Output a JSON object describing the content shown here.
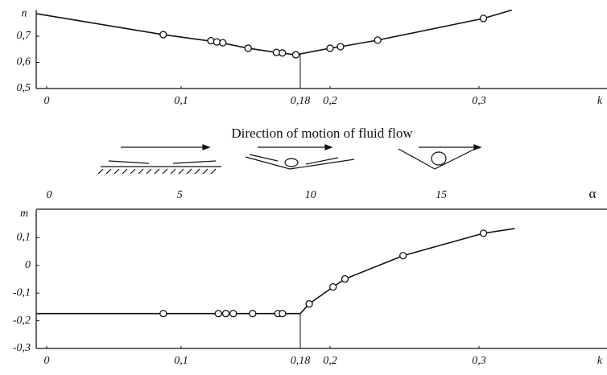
{
  "chart_data": [
    {
      "type": "line",
      "y_label": "n",
      "x_label": "k",
      "xlim": [
        0,
        0.38
      ],
      "xticks": [
        0,
        {
          "value": 0.1,
          "label": "0,1"
        },
        {
          "value": 0.18,
          "label": "0,18"
        },
        {
          "value": 0.2,
          "label": "0,2"
        },
        {
          "value": 0.3,
          "label": "0,3"
        }
      ],
      "ylim": [
        0.5,
        0.8
      ],
      "yticks": [
        {
          "value": 0.5,
          "label": "0,5"
        },
        {
          "value": 0.6,
          "label": "0,6"
        },
        {
          "value": 0.7,
          "label": "0,7"
        }
      ],
      "vline": 0.18,
      "color": "#111111",
      "series": [
        {
          "style": "line",
          "x": [
            0.003,
            0.088,
            0.124,
            0.145,
            0.164,
            0.177,
            0.2,
            0.207,
            0.232,
            0.303,
            0.322
          ],
          "values": [
            0.786,
            0.706,
            0.678,
            0.654,
            0.638,
            0.629,
            0.654,
            0.66,
            0.685,
            0.768,
            0.8
          ]
        },
        {
          "style": "points",
          "x": [
            0.088,
            0.12,
            0.124,
            0.128,
            0.145,
            0.164,
            0.168,
            0.177,
            0.2,
            0.207,
            0.232,
            0.303
          ],
          "values": [
            0.706,
            0.683,
            0.678,
            0.675,
            0.654,
            0.638,
            0.636,
            0.629,
            0.654,
            0.66,
            0.685,
            0.768
          ]
        }
      ]
    },
    {
      "type": "line",
      "y_label": "m",
      "x_label": "k",
      "xlim": [
        0,
        0.38
      ],
      "xticks": [
        0,
        {
          "value": 0.1,
          "label": "0,1"
        },
        {
          "value": 0.18,
          "label": "0,18"
        },
        {
          "value": 0.2,
          "label": "0,2"
        },
        {
          "value": 0.3,
          "label": "0,3"
        }
      ],
      "ylim": [
        -0.3,
        0.2
      ],
      "yticks": [
        {
          "value": -0.3,
          "label": "-0,3"
        },
        {
          "value": -0.2,
          "label": "-0,2"
        },
        {
          "value": -0.1,
          "label": "-0,1"
        },
        0,
        {
          "value": 0.1,
          "label": "0,1"
        }
      ],
      "vline": 0.18,
      "color": "#111111",
      "series": [
        {
          "style": "line",
          "x": [
            0.003,
            0.18,
            0.186,
            0.202,
            0.21,
            0.249,
            0.303,
            0.324
          ],
          "values": [
            -0.174,
            -0.174,
            -0.139,
            -0.078,
            -0.049,
            0.035,
            0.116,
            0.133
          ]
        },
        {
          "style": "points",
          "x": [
            0.088,
            0.125,
            0.13,
            0.135,
            0.148,
            0.165,
            0.168,
            0.186,
            0.202,
            0.21,
            0.249,
            0.303
          ],
          "values": [
            -0.174,
            -0.174,
            -0.174,
            -0.174,
            -0.174,
            -0.174,
            -0.174,
            -0.139,
            -0.078,
            -0.049,
            0.035,
            0.116
          ]
        }
      ]
    }
  ],
  "flow_diagram": {
    "title": "Direction of motion of fluid flow",
    "axis_label": "α",
    "xlim": [
      0,
      21
    ],
    "xticks": [
      0,
      5,
      10,
      15
    ]
  }
}
